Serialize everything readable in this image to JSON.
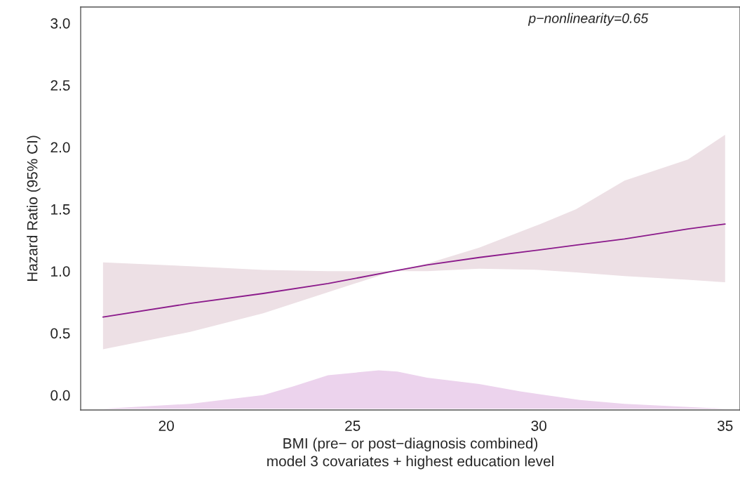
{
  "chart_data": {
    "type": "line",
    "xlabel": "BMI (pre− or post−diagnosis combined)\nmodel 3 covariates + highest education level",
    "ylabel": "Hazard Ratio (95% CI)",
    "annotations": [
      "p−nonlinearity=0.65"
    ],
    "xlim": [
      17.7,
      35.4
    ],
    "ylim": [
      -0.12,
      3.13
    ],
    "xticks": [
      20,
      25,
      30,
      35
    ],
    "yticks": [
      {
        "value": 0,
        "label": "0.0"
      },
      {
        "value": 0.5,
        "label": "0.5"
      },
      {
        "value": 1,
        "label": "1.0"
      },
      {
        "value": 1.5,
        "label": "1.5"
      },
      {
        "value": 2,
        "label": "2.0"
      },
      {
        "value": 2.5,
        "label": "2.5"
      },
      {
        "value": 3,
        "label": "3.0"
      }
    ],
    "grid": false,
    "line_style": "solid",
    "marker": "none",
    "series": [
      {
        "type": "area",
        "color": "#ecd3ed",
        "x": [
          18.3,
          20.64,
          22.6,
          23.4,
          24.34,
          25.7,
          26.2,
          27.0,
          28.4,
          29.5,
          31.1,
          32.3,
          35.0
        ],
        "values": [
          -0.11,
          -0.07,
          0.0,
          0.07,
          0.16,
          0.2,
          0.19,
          0.14,
          0.09,
          0.03,
          -0.04,
          -0.07,
          -0.11
        ]
      },
      {
        "color": "#8b1a8b",
        "x": [
          18.3,
          20.64,
          22.6,
          24.34,
          26.1,
          27.0,
          28.4,
          30.0,
          31.0,
          32.3,
          34.0,
          35.0
        ],
        "values": [
          0.63,
          0.74,
          0.82,
          0.9,
          1.0,
          1.05,
          1.11,
          1.17,
          1.21,
          1.26,
          1.34,
          1.38
        ],
        "lower": [
          0.37,
          0.51,
          0.66,
          0.83,
          1.0,
          1.0,
          1.02,
          1.01,
          0.99,
          0.96,
          0.93,
          0.91
        ],
        "upper": [
          1.07,
          1.04,
          1.01,
          1.0,
          1.0,
          1.06,
          1.19,
          1.375,
          1.5,
          1.73,
          1.9,
          2.1
        ]
      }
    ]
  }
}
